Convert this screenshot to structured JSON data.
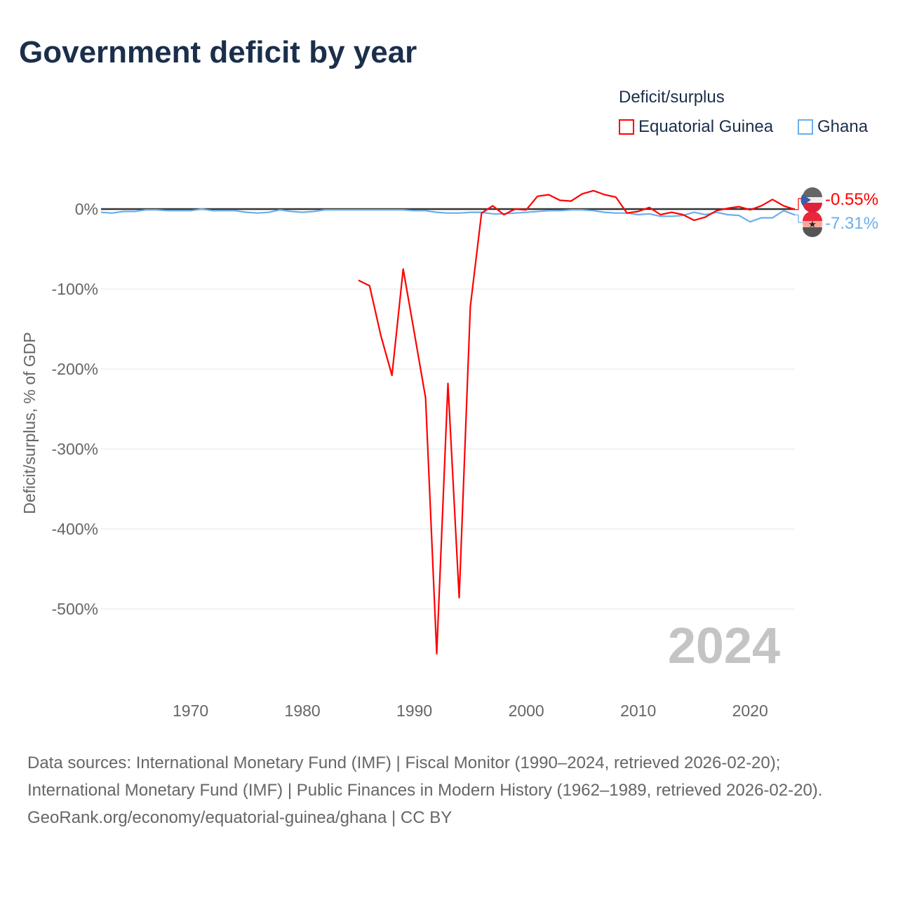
{
  "chart_data": {
    "type": "line",
    "title": "Government deficit by year",
    "ylabel": "Deficit/surplus, % of GDP",
    "xlabel": "",
    "xlim": [
      1962,
      2024
    ],
    "ylim": [
      -600,
      20
    ],
    "xticks": [
      1970,
      1980,
      1990,
      2000,
      2010,
      2020
    ],
    "yticks": [
      {
        "v": 0,
        "label": "0%"
      },
      {
        "v": -100,
        "label": "-100%"
      },
      {
        "v": -200,
        "label": "-200%"
      },
      {
        "v": -300,
        "label": "-300%"
      },
      {
        "v": -400,
        "label": "-400%"
      },
      {
        "v": -500,
        "label": "-500%"
      }
    ],
    "legend_title": "Deficit/surplus",
    "legend_placement": "top-right",
    "year_watermark": "2024",
    "series": [
      {
        "name": "Equatorial Guinea",
        "color": "#ff0000",
        "end_label": "-0.55%",
        "x": [
          1985,
          1986,
          1987,
          1988,
          1989,
          1990,
          1991,
          1992,
          1993,
          1994,
          1995,
          1996,
          1997,
          1998,
          1999,
          2000,
          2001,
          2002,
          2003,
          2004,
          2005,
          2006,
          2007,
          2008,
          2009,
          2010,
          2011,
          2012,
          2013,
          2014,
          2015,
          2016,
          2017,
          2018,
          2019,
          2020,
          2021,
          2022,
          2023,
          2024
        ],
        "values": [
          -89,
          -96,
          -158,
          -208,
          -75,
          -155,
          -236,
          -556,
          -218,
          -486,
          -122,
          -5,
          4,
          -7,
          0,
          -1,
          16,
          18,
          11,
          10,
          19,
          23,
          18,
          15,
          -5,
          -3,
          2,
          -7,
          -4,
          -7,
          -14,
          -10,
          -2,
          1,
          3,
          -1,
          4,
          12,
          4,
          -0.55
        ]
      },
      {
        "name": "Ghana",
        "color": "#6aaeea",
        "end_label": "-7.31%",
        "x": [
          1962,
          1963,
          1964,
          1965,
          1966,
          1967,
          1968,
          1969,
          1970,
          1971,
          1972,
          1973,
          1974,
          1975,
          1976,
          1977,
          1978,
          1979,
          1980,
          1981,
          1982,
          1983,
          1984,
          1985,
          1986,
          1987,
          1988,
          1989,
          1990,
          1991,
          1992,
          1993,
          1994,
          1995,
          1996,
          1997,
          1998,
          1999,
          2000,
          2001,
          2002,
          2003,
          2004,
          2005,
          2006,
          2007,
          2008,
          2009,
          2010,
          2011,
          2012,
          2013,
          2014,
          2015,
          2016,
          2017,
          2018,
          2019,
          2020,
          2021,
          2022,
          2023,
          2024
        ],
        "values": [
          -4,
          -5,
          -3,
          -3,
          -1,
          -1,
          -2,
          -2,
          -2,
          0,
          -2,
          -2,
          -2,
          -4,
          -5,
          -4,
          -1,
          -3,
          -4,
          -3,
          -1,
          -1,
          -1,
          -1,
          -1,
          -1,
          -1,
          -1,
          -2,
          -2,
          -4,
          -5,
          -5,
          -4,
          -4,
          -6,
          -6,
          -5,
          -4,
          -3,
          -2,
          -2,
          -1,
          -1,
          -2,
          -4,
          -5,
          -5,
          -7,
          -6,
          -9,
          -9,
          -8,
          -4,
          -7,
          -4,
          -7,
          -8,
          -16,
          -11,
          -11,
          -2,
          -7.31
        ]
      }
    ]
  },
  "footer": {
    "sources": "Data sources: International Monetary Fund (IMF) | Fiscal Monitor (1990–2024, retrieved 2026-02-20); International Monetary Fund (IMF) | Public Finances in Modern History (1962–1989, retrieved 2026-02-20).",
    "credit": "GeoRank.org/economy/equatorial-guinea/ghana | CC BY"
  }
}
